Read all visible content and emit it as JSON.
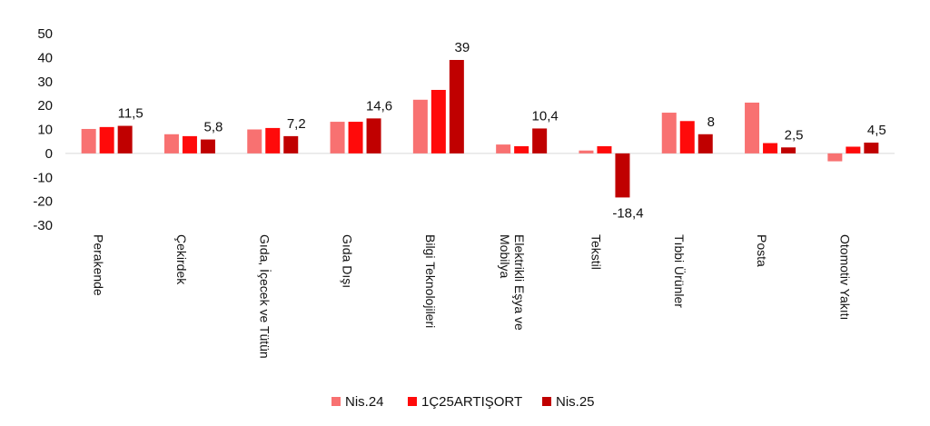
{
  "chart_data": {
    "type": "bar",
    "categories": [
      "Perakende",
      "Çekirdek",
      "Gıda, İçecek ve Tütün",
      "Gıda Dışı",
      "Bilgi Teknolojileri",
      "Elektrikli Eşya ve Mobilya",
      "Tekstil",
      "Tıbbi Ürünler",
      "Posta",
      "Otomotiv Yakıtı"
    ],
    "series": [
      {
        "name": "Nis.24",
        "color": "#f87171",
        "values": [
          10.2,
          8.0,
          10.0,
          13.2,
          22.4,
          3.7,
          1.2,
          17.0,
          21.2,
          -3.3
        ]
      },
      {
        "name": "1Ç25ARTIŞORT",
        "color": "#ff0a0a",
        "values": [
          11.0,
          7.2,
          10.6,
          13.2,
          26.5,
          3.0,
          3.0,
          13.5,
          4.3,
          2.8
        ]
      },
      {
        "name": "Nis.25",
        "color": "#c00000",
        "values": [
          11.5,
          5.8,
          7.2,
          14.6,
          39,
          10.4,
          -18.4,
          8,
          2.5,
          4.5
        ]
      }
    ],
    "data_labels": [
      "11,5",
      "5,8",
      "7,2",
      "14,6",
      "39",
      "10,4",
      "-18,4",
      "8",
      "2,5",
      "4,5"
    ],
    "yticks": [
      "50",
      "40",
      "30",
      "20",
      "10",
      "0",
      "-10",
      "-20",
      "-30"
    ],
    "ylim": [
      -30,
      50
    ],
    "legend_position": "bottom",
    "grid": false
  }
}
